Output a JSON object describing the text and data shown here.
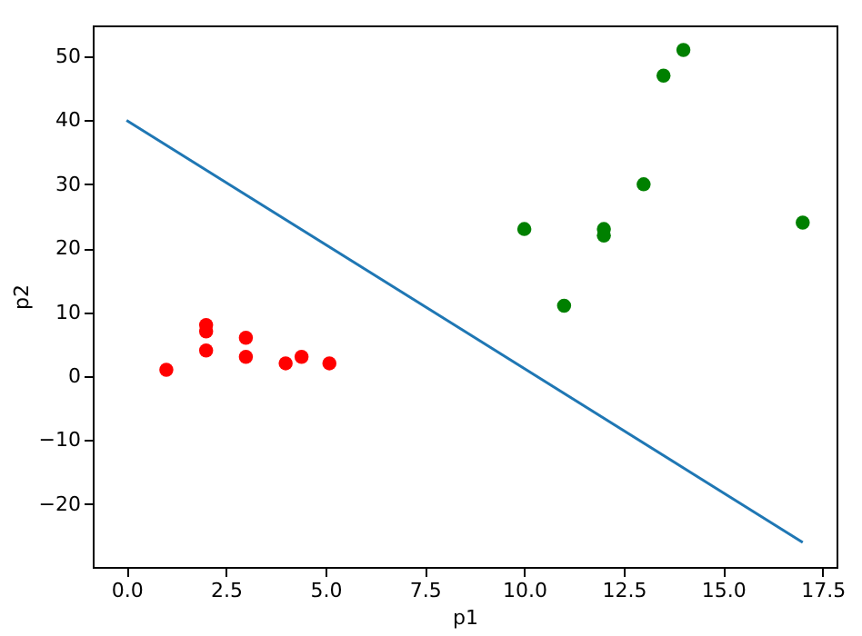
{
  "chart_data": {
    "type": "scatter",
    "xlabel": "p1",
    "ylabel": "p2",
    "xlim": [
      -0.85,
      17.85
    ],
    "ylim": [
      -29.85,
      54.85
    ],
    "xticks": [
      {
        "value": 0,
        "label": "0.0"
      },
      {
        "value": 2.5,
        "label": "2.5"
      },
      {
        "value": 5,
        "label": "5.0"
      },
      {
        "value": 7.5,
        "label": "7.5"
      },
      {
        "value": 10,
        "label": "10.0"
      },
      {
        "value": 12.5,
        "label": "12.5"
      },
      {
        "value": 15,
        "label": "15.0"
      },
      {
        "value": 17.5,
        "label": "17.5"
      }
    ],
    "yticks": [
      -20,
      -10,
      0,
      10,
      20,
      30,
      40,
      50
    ],
    "grid": false,
    "marker": "circle",
    "series": [
      {
        "color": "#ff0000",
        "x": [
          1,
          2,
          2,
          2,
          3,
          3,
          4,
          4.4,
          5.1
        ],
        "values": [
          1,
          8,
          7,
          4,
          6,
          3,
          2,
          3,
          2
        ]
      },
      {
        "color": "#008000",
        "x": [
          10,
          11,
          12,
          12,
          13,
          13.5,
          14,
          17
        ],
        "values": [
          23,
          11,
          23,
          22,
          30,
          47,
          51,
          24
        ]
      },
      {
        "type": "line",
        "color": "#1f77b4",
        "line_style": "solid",
        "marker": "none",
        "x": [
          0,
          17
        ],
        "values": [
          40,
          -26
        ]
      }
    ]
  }
}
